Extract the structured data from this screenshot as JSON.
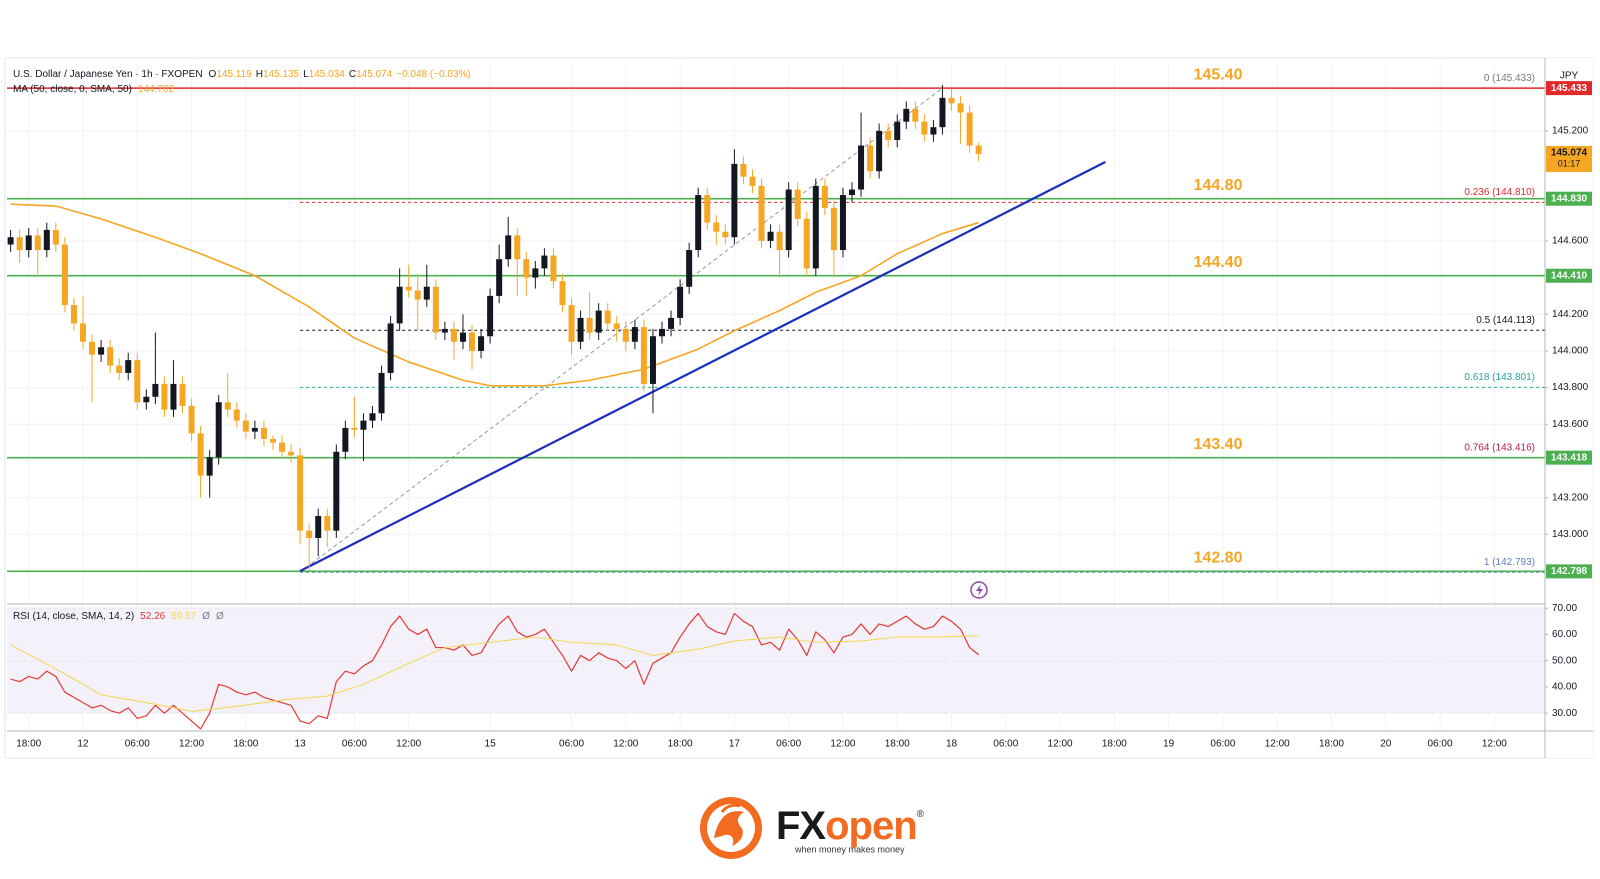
{
  "chart_data": [
    {
      "type": "candlestick",
      "legend": {
        "symbol": "U.S. Dollar / Japanese Yen · 1h · FXOPEN",
        "ohlc": [
          [
            "O",
            "145.119"
          ],
          [
            "H",
            "145.135"
          ],
          [
            "L",
            "145.034"
          ],
          [
            "C",
            "145.074"
          ]
        ],
        "change": "−0.048 (−0.03%)",
        "ma_label": "MA (50, close, 0, SMA, 50)",
        "ma_value": "144.702"
      },
      "currency": "JPY",
      "up_color": "#131722",
      "down_color": "#f5a623",
      "xlim": [
        -2.4,
        167.6
      ],
      "ylim": [
        142.62,
        145.57
      ],
      "grid": true,
      "yticks": [
        {
          "value": 145.2,
          "label": "145.200"
        },
        {
          "value": 144.6,
          "label": "144.600"
        },
        {
          "value": 144.2,
          "label": "144.200"
        },
        {
          "value": 144.0,
          "label": "144.000"
        },
        {
          "value": 143.8,
          "label": "143.800"
        },
        {
          "value": 143.6,
          "label": "143.600"
        },
        {
          "value": 143.2,
          "label": "143.200"
        },
        {
          "value": 143.0,
          "label": "143.000"
        }
      ],
      "x": [
        -2,
        -1,
        0,
        1,
        2,
        3,
        4,
        5,
        6,
        7,
        8,
        9,
        10,
        11,
        12,
        13,
        14,
        15,
        16,
        17,
        18,
        19,
        20,
        21,
        22,
        23,
        24,
        25,
        26,
        27,
        28,
        29,
        30,
        31,
        32,
        33,
        34,
        35,
        36,
        37,
        38,
        39,
        40,
        41,
        42,
        43,
        44,
        45,
        46,
        47,
        48,
        49,
        50,
        51,
        52,
        53,
        54,
        55,
        56,
        57,
        58,
        59,
        60,
        61,
        62,
        63,
        64,
        65,
        66,
        67,
        68,
        69,
        70,
        71,
        72,
        73,
        74,
        75,
        76,
        77,
        78,
        79,
        80,
        81,
        82,
        83,
        84,
        85,
        86,
        87,
        88,
        89,
        90,
        91,
        92,
        93,
        94,
        95,
        96,
        97,
        98,
        99,
        100,
        101,
        102,
        103,
        104,
        105
      ],
      "open": [
        144.58,
        144.62,
        144.55,
        144.63,
        144.55,
        144.66,
        144.58,
        144.25,
        144.15,
        144.05,
        143.98,
        144.02,
        143.92,
        143.88,
        143.95,
        143.72,
        143.75,
        143.82,
        143.68,
        143.82,
        143.7,
        143.55,
        143.32,
        143.42,
        143.72,
        143.68,
        143.62,
        143.56,
        143.58,
        143.52,
        143.5,
        143.45,
        143.43,
        143.02,
        142.98,
        143.1,
        143.02,
        143.45,
        143.58,
        143.57,
        143.62,
        143.66,
        143.88,
        144.15,
        144.35,
        144.33,
        144.28,
        144.35,
        144.1,
        144.12,
        144.05,
        144.1,
        144.0,
        144.08,
        144.3,
        144.5,
        144.63,
        144.5,
        144.4,
        144.45,
        144.52,
        144.38,
        144.25,
        144.05,
        144.18,
        144.1,
        144.22,
        144.15,
        144.12,
        144.05,
        144.13,
        143.82,
        144.08,
        144.12,
        144.18,
        144.35,
        144.55,
        144.85,
        144.7,
        144.65,
        144.62,
        145.02,
        144.95,
        144.9,
        144.6,
        144.65,
        144.55,
        144.88,
        144.72,
        144.45,
        144.9,
        144.78,
        144.55,
        144.85,
        144.88,
        145.12,
        144.98,
        145.2,
        145.15,
        145.25,
        145.32,
        145.25,
        145.18,
        145.22,
        145.38,
        145.35,
        145.3,
        145.119
      ],
      "high": [
        144.66,
        144.66,
        144.67,
        144.67,
        144.7,
        144.7,
        144.62,
        144.29,
        144.3,
        144.09,
        144.06,
        144.06,
        143.96,
        143.99,
        143.99,
        143.79,
        144.1,
        143.86,
        143.95,
        143.86,
        143.74,
        143.59,
        143.46,
        143.76,
        143.88,
        143.72,
        143.66,
        143.62,
        143.62,
        143.54,
        143.54,
        143.49,
        143.47,
        143.06,
        143.14,
        143.14,
        143.49,
        143.62,
        143.75,
        143.66,
        143.7,
        143.92,
        144.19,
        144.45,
        144.47,
        144.42,
        144.47,
        144.39,
        144.16,
        144.16,
        144.2,
        144.14,
        144.12,
        144.34,
        144.58,
        144.73,
        144.67,
        144.54,
        144.49,
        144.56,
        144.56,
        144.42,
        144.29,
        144.22,
        144.32,
        144.26,
        144.26,
        144.19,
        144.16,
        144.17,
        144.17,
        144.12,
        144.16,
        144.22,
        144.39,
        144.59,
        144.89,
        144.89,
        144.74,
        144.69,
        145.1,
        145.06,
        144.99,
        144.94,
        144.69,
        144.69,
        144.92,
        144.92,
        144.76,
        144.94,
        144.94,
        144.82,
        144.89,
        144.92,
        145.3,
        145.16,
        145.24,
        145.24,
        145.29,
        145.36,
        145.36,
        145.29,
        145.26,
        145.45,
        145.43,
        145.39,
        145.34,
        145.135
      ],
      "low": [
        144.54,
        144.48,
        144.51,
        144.42,
        144.51,
        144.54,
        144.21,
        144.11,
        144.01,
        143.72,
        143.94,
        143.88,
        143.84,
        143.84,
        143.68,
        143.68,
        143.71,
        143.64,
        143.64,
        143.66,
        143.51,
        143.2,
        143.2,
        143.38,
        143.64,
        143.58,
        143.52,
        143.52,
        143.48,
        143.46,
        143.41,
        143.39,
        142.95,
        142.8,
        142.88,
        142.93,
        142.98,
        143.41,
        143.53,
        143.4,
        143.58,
        143.62,
        143.84,
        144.11,
        144.29,
        144.11,
        144.24,
        144.06,
        144.06,
        143.95,
        144.01,
        143.9,
        143.96,
        144.04,
        144.26,
        144.46,
        144.3,
        144.3,
        144.34,
        144.41,
        144.34,
        144.21,
        143.98,
        144.01,
        144.06,
        144.06,
        144.11,
        144.05,
        144.0,
        144.01,
        143.78,
        143.66,
        144.04,
        144.08,
        144.14,
        144.31,
        144.51,
        144.66,
        144.58,
        144.58,
        144.58,
        144.91,
        144.86,
        144.56,
        144.56,
        144.4,
        144.51,
        144.68,
        144.41,
        144.41,
        144.74,
        144.4,
        144.51,
        144.81,
        144.84,
        144.94,
        144.94,
        145.11,
        145.11,
        145.21,
        145.21,
        145.14,
        145.14,
        145.18,
        145.31,
        145.13,
        145.08,
        145.034
      ],
      "close": [
        144.62,
        144.55,
        144.63,
        144.55,
        144.66,
        144.58,
        144.25,
        144.15,
        144.05,
        143.98,
        144.02,
        143.92,
        143.88,
        143.95,
        143.72,
        143.75,
        143.82,
        143.68,
        143.82,
        143.7,
        143.55,
        143.32,
        143.42,
        143.72,
        143.68,
        143.62,
        143.56,
        143.58,
        143.52,
        143.5,
        143.45,
        143.43,
        143.02,
        142.98,
        143.1,
        143.02,
        143.45,
        143.58,
        143.57,
        143.62,
        143.66,
        143.88,
        144.15,
        144.35,
        144.33,
        144.28,
        144.35,
        144.1,
        144.12,
        144.05,
        144.1,
        144.0,
        144.08,
        144.3,
        144.5,
        144.63,
        144.5,
        144.4,
        144.45,
        144.52,
        144.38,
        144.25,
        144.05,
        144.18,
        144.1,
        144.22,
        144.15,
        144.12,
        144.05,
        144.13,
        143.82,
        144.08,
        144.12,
        144.18,
        144.35,
        144.55,
        144.85,
        144.7,
        144.65,
        144.62,
        145.02,
        144.95,
        144.9,
        144.6,
        144.65,
        144.55,
        144.88,
        144.72,
        144.45,
        144.9,
        144.78,
        144.55,
        144.85,
        144.88,
        145.12,
        144.98,
        145.2,
        145.15,
        145.25,
        145.32,
        145.25,
        145.18,
        145.22,
        145.38,
        145.35,
        145.3,
        145.12,
        145.074
      ],
      "ma": {
        "color": "#f5a623",
        "x": [
          -2,
          3,
          8,
          14,
          19,
          25,
          31,
          36,
          42,
          48,
          51,
          57,
          62,
          68,
          74,
          78,
          83,
          87,
          92,
          96,
          101,
          105
        ],
        "values": [
          144.8,
          144.79,
          144.72,
          144.62,
          144.53,
          144.41,
          144.24,
          144.07,
          143.94,
          143.84,
          143.81,
          143.81,
          143.84,
          143.9,
          144.01,
          144.11,
          144.22,
          144.32,
          144.41,
          144.53,
          144.64,
          144.7
        ]
      },
      "hlines": [
        {
          "value": 145.433,
          "label": "145.433",
          "note": "145.40",
          "color": "#e0292b"
        },
        {
          "value": 144.83,
          "label": "144.830",
          "note": "144.80",
          "color": "#4caf50"
        },
        {
          "value": 144.41,
          "label": "144.410",
          "note": "144.40",
          "color": "#4caf50"
        },
        {
          "value": 143.418,
          "label": "143.418",
          "note": "143.40",
          "color": "#4caf50"
        },
        {
          "value": 142.798,
          "label": "142.798",
          "note": "142.80",
          "color": "#4caf50"
        }
      ],
      "note_color": "#f5a623",
      "fib": {
        "x": [
          30,
          101
        ],
        "levels": [
          {
            "value": 145.433,
            "label": "0 (145.433)",
            "color": "#787b86"
          },
          {
            "value": 144.81,
            "label": "0.236 (144.810)",
            "color": "#e0292b"
          },
          {
            "value": 144.113,
            "label": "0.5 (144.113)",
            "color": "#131722"
          },
          {
            "value": 143.801,
            "label": "0.618 (143.801)",
            "color": "#26a69a"
          },
          {
            "value": 143.416,
            "label": "0.764 (143.416)",
            "color": "#b71c4a"
          },
          {
            "value": 142.793,
            "label": "1 (142.793)",
            "color": "#5b7fb8"
          }
        ]
      },
      "trend": {
        "color": "#1b2fbf",
        "x": [
          30,
          119
        ],
        "values": [
          142.8,
          145.03
        ]
      },
      "last_price": {
        "value": 145.074,
        "label": "145.074",
        "countdown": "01:17",
        "color": "#f5a623"
      }
    },
    {
      "type": "line",
      "legend": {
        "label": "RSI (14, close, SMA, 14, 2)",
        "values": [
          "52.26",
          "59.57"
        ],
        "flags": [
          "Ø",
          "Ø"
        ]
      },
      "xlim": [
        -2.4,
        167.6
      ],
      "ylim": [
        23.2,
        71.6
      ],
      "grid": true,
      "band": [
        30,
        70
      ],
      "midline": 50,
      "band_color": "#ede7f6",
      "yticks": [
        {
          "value": 70,
          "label": "70.00"
        },
        {
          "value": 60,
          "label": "60.00"
        },
        {
          "value": 50,
          "label": "50.00"
        },
        {
          "value": 40,
          "label": "40.00"
        },
        {
          "value": 30,
          "label": "30.00"
        }
      ],
      "xticks": [
        {
          "value": 0,
          "label": "18:00"
        },
        {
          "value": 6,
          "label": "12"
        },
        {
          "value": 12,
          "label": "06:00"
        },
        {
          "value": 18,
          "label": "12:00"
        },
        {
          "value": 24,
          "label": "18:00"
        },
        {
          "value": 30,
          "label": "13"
        },
        {
          "value": 36,
          "label": "06:00"
        },
        {
          "value": 42,
          "label": "12:00"
        },
        {
          "value": 51,
          "label": "15"
        },
        {
          "value": 60,
          "label": "06:00"
        },
        {
          "value": 66,
          "label": "12:00"
        },
        {
          "value": 72,
          "label": "18:00"
        },
        {
          "value": 78,
          "label": "17"
        },
        {
          "value": 84,
          "label": "06:00"
        },
        {
          "value": 90,
          "label": "12:00"
        },
        {
          "value": 96,
          "label": "18:00"
        },
        {
          "value": 102,
          "label": "18"
        },
        {
          "value": 108,
          "label": "06:00"
        },
        {
          "value": 114,
          "label": "12:00"
        },
        {
          "value": 120,
          "label": "18:00"
        },
        {
          "value": 126,
          "label": "19"
        },
        {
          "value": 132,
          "label": "06:00"
        },
        {
          "value": 138,
          "label": "12:00"
        },
        {
          "value": 144,
          "label": "18:00"
        },
        {
          "value": 150,
          "label": "20"
        },
        {
          "value": 156,
          "label": "06:00"
        },
        {
          "value": 162,
          "label": "12:00"
        }
      ],
      "series": [
        {
          "color": "#e53935",
          "x": [
            -2,
            -1,
            0,
            1,
            2,
            3,
            4,
            5,
            6,
            7,
            8,
            9,
            10,
            11,
            12,
            13,
            14,
            15,
            16,
            17,
            18,
            19,
            20,
            21,
            22,
            23,
            24,
            25,
            26,
            27,
            28,
            29,
            30,
            31,
            32,
            33,
            34,
            35,
            36,
            37,
            38,
            39,
            40,
            41,
            42,
            43,
            44,
            45,
            46,
            47,
            48,
            49,
            50,
            51,
            52,
            53,
            54,
            55,
            56,
            57,
            58,
            59,
            60,
            61,
            62,
            63,
            64,
            65,
            66,
            67,
            68,
            69,
            70,
            71,
            72,
            73,
            74,
            75,
            76,
            77,
            78,
            79,
            80,
            81,
            82,
            83,
            84,
            85,
            86,
            87,
            88,
            89,
            90,
            91,
            92,
            93,
            94,
            95,
            96,
            97,
            98,
            99,
            100,
            101,
            102,
            103,
            104,
            105
          ],
          "values": [
            43,
            42,
            44,
            43,
            46,
            44,
            38,
            36,
            34,
            32,
            33,
            31,
            30,
            32,
            28,
            29,
            33,
            30,
            33,
            30,
            27,
            24,
            30,
            41,
            40,
            38,
            37,
            38,
            36,
            35,
            34,
            33,
            27,
            26,
            29,
            28,
            42,
            46,
            45,
            48,
            50,
            56,
            63,
            67,
            62,
            60,
            62,
            55,
            55,
            54,
            56,
            52,
            53,
            59,
            64,
            67,
            61,
            59,
            60,
            62,
            57,
            52,
            46,
            52,
            50,
            53,
            51,
            50,
            47,
            50,
            41,
            49,
            51,
            53,
            59,
            64,
            68,
            63,
            61,
            60,
            68,
            65,
            63,
            56,
            57,
            54,
            62,
            58,
            52,
            61,
            58,
            53,
            59,
            60,
            64,
            60,
            64,
            63,
            65,
            67,
            64,
            62,
            63,
            67,
            65,
            62,
            55,
            52.26
          ]
        },
        {
          "color": "#f2d84b",
          "x": [
            -2,
            4,
            8,
            14,
            18,
            23,
            28,
            33,
            37,
            42,
            46,
            51,
            56,
            60,
            65,
            69,
            74,
            78,
            83,
            87,
            92,
            96,
            101,
            105
          ],
          "values": [
            56,
            45,
            37,
            33.4,
            30.7,
            32.6,
            35,
            36.5,
            41,
            49,
            55,
            57,
            59,
            57,
            56,
            52,
            54.4,
            57.5,
            59,
            57,
            57.5,
            59,
            59,
            59.57
          ]
        }
      ]
    }
  ],
  "footer": {
    "brand_a": "FX",
    "brand_b": "open",
    "mark": "®",
    "tagline": "when money makes money"
  }
}
